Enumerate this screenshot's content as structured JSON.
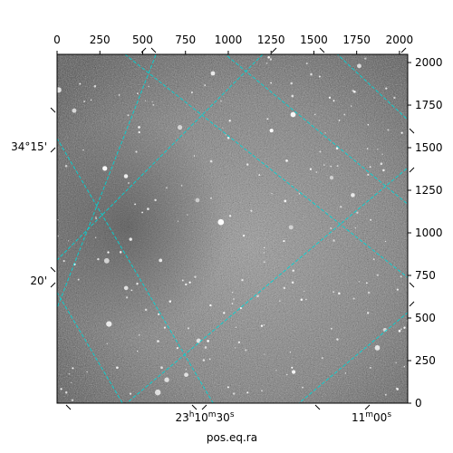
{
  "chart_data": {
    "type": "image",
    "title": "",
    "xlabel": "pos.eq.ra",
    "ylabel": "",
    "pixel_axes": {
      "x_range": [
        0,
        2048
      ],
      "y_range": [
        0,
        2048
      ],
      "top_ticks": [
        0,
        250,
        500,
        750,
        1000,
        1250,
        1500,
        1750,
        2000
      ],
      "right_ticks": [
        0,
        250,
        500,
        750,
        1000,
        1250,
        1500,
        1750,
        2000
      ]
    },
    "ra_ticks": [
      {
        "h": "23",
        "m": "10",
        "s": "30",
        "suffix": ""
      },
      {
        "h": "",
        "m": "11",
        "s": "00",
        "suffix": ""
      }
    ],
    "dec_ticks": [
      {
        "label": "34°15'"
      },
      {
        "label": "20'"
      }
    ],
    "image": {
      "colormap": "gray",
      "background_level": 0.5
    },
    "grid": {
      "on": true,
      "color": "#00d5d5",
      "style": "dashed"
    },
    "colors": {
      "grid": "#00d5d5",
      "frame": "#000000",
      "star": "#ffffff"
    }
  }
}
